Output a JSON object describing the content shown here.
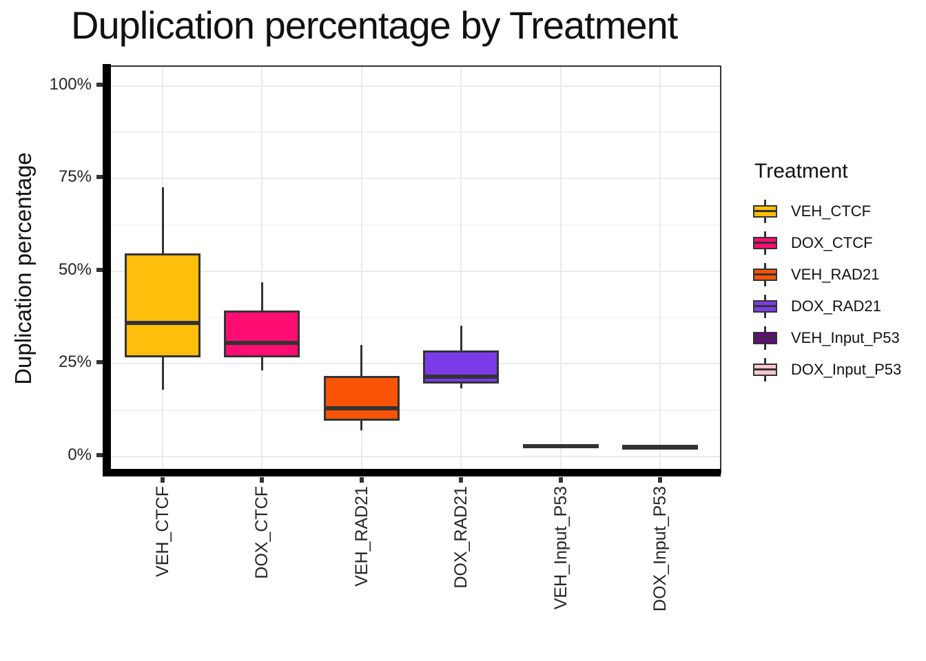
{
  "chart_data": {
    "type": "boxplot",
    "title": "Duplication percentage by Treatment",
    "xlabel": "",
    "ylabel": "Duplication percentage",
    "y_axis": {
      "tick_labels": [
        "0%",
        "25%",
        "50%",
        "75%",
        "100%"
      ],
      "tick_values": [
        0,
        25,
        50,
        75,
        100
      ],
      "minor_gridline_values": [
        12.5,
        37.5,
        62.5,
        87.5
      ],
      "range_shown": [
        -4.6,
        104.9
      ],
      "grid": true
    },
    "categories": [
      "VEH_CTCF",
      "DOX_CTCF",
      "VEH_RAD21",
      "DOX_RAD21",
      "VEH_Input_P53",
      "DOX_Input_P53"
    ],
    "series": [
      {
        "name": "VEH_CTCF",
        "color": "#FFBE0C",
        "whisker_low": 18.0,
        "q1": 27.0,
        "median": 36.0,
        "q3": 54.5,
        "whisker_high": 72.7
      },
      {
        "name": "DOX_CTCF",
        "color": "#FF0D73",
        "whisker_low": 23.3,
        "q1": 27.0,
        "median": 30.6,
        "q3": 39.0,
        "whisker_high": 46.9
      },
      {
        "name": "VEH_RAD21",
        "color": "#F95406",
        "whisker_low": 7.0,
        "q1": 10.0,
        "median": 13.0,
        "q3": 21.5,
        "whisker_high": 30.0
      },
      {
        "name": "DOX_RAD21",
        "color": "#7C3BE8",
        "whisker_low": 18.4,
        "q1": 20.0,
        "median": 21.5,
        "q3": 28.4,
        "whisker_high": 35.3
      },
      {
        "name": "VEH_Input_P53",
        "color": "#660A80",
        "whisker_low": 2.6,
        "q1": 2.7,
        "median": 2.85,
        "q3": 3.0,
        "whisker_high": 3.1
      },
      {
        "name": "DOX_Input_P53",
        "color": "#FFC6D0",
        "whisker_low": 2.1,
        "q1": 2.2,
        "median": 2.45,
        "q3": 2.8,
        "whisker_high": 2.9
      }
    ],
    "legend": {
      "title": "Treatment",
      "position": "right",
      "items": [
        "VEH_CTCF",
        "DOX_CTCF",
        "VEH_RAD21",
        "DOX_RAD21",
        "VEH_Input_P53",
        "DOX_Input_P53"
      ]
    },
    "style": {
      "box_border_color": "#333333",
      "major_gridline_color": "#EBEBEB",
      "minor_gridline_color": "#F2F2F2",
      "axis_line_color": "#000000"
    }
  }
}
